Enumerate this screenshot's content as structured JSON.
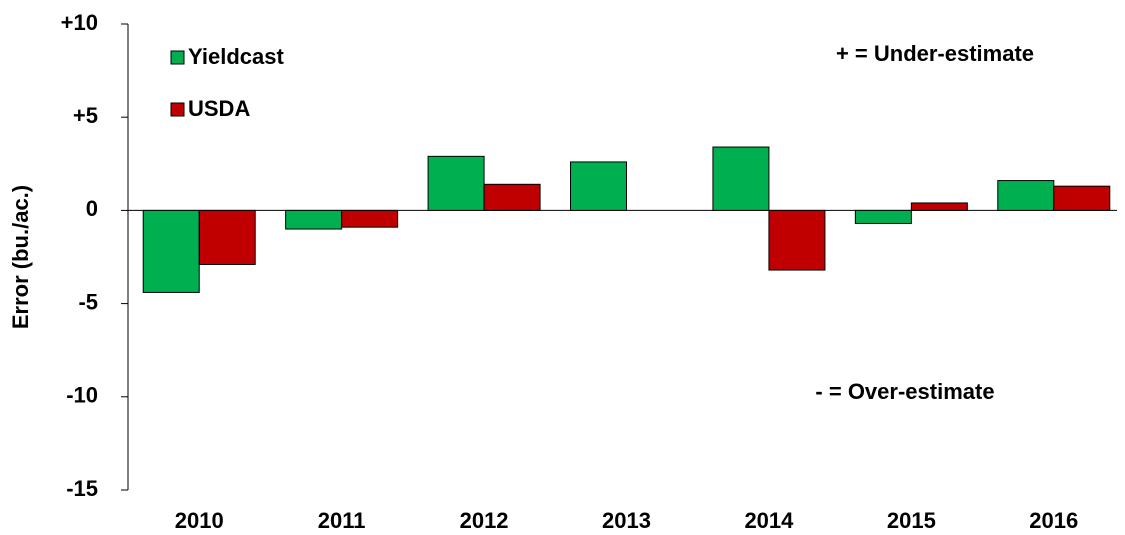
{
  "chart_data": {
    "type": "bar",
    "y_label": "Error (bu./ac.)",
    "annotations": [
      "+ = Under-estimate",
      "- = Over-estimate"
    ],
    "categories": [
      "2010",
      "2011",
      "2012",
      "2013",
      "2014",
      "2015",
      "2016"
    ],
    "series": [
      {
        "name": "Yieldcast",
        "color": "#00b050",
        "values": [
          -4.4,
          -1.0,
          2.9,
          2.6,
          3.4,
          -0.7,
          1.6
        ]
      },
      {
        "name": "USDA",
        "color": "#c00000",
        "values": [
          -2.9,
          -0.9,
          1.4,
          0,
          -3.2,
          0.4,
          1.3
        ]
      }
    ],
    "ylim": [
      -15,
      10
    ],
    "yticks": [
      -15,
      -10,
      -5,
      0,
      {
        "value": 5,
        "label": "+5"
      },
      {
        "value": 10,
        "label": "+10"
      }
    ],
    "legend": "upper left"
  }
}
